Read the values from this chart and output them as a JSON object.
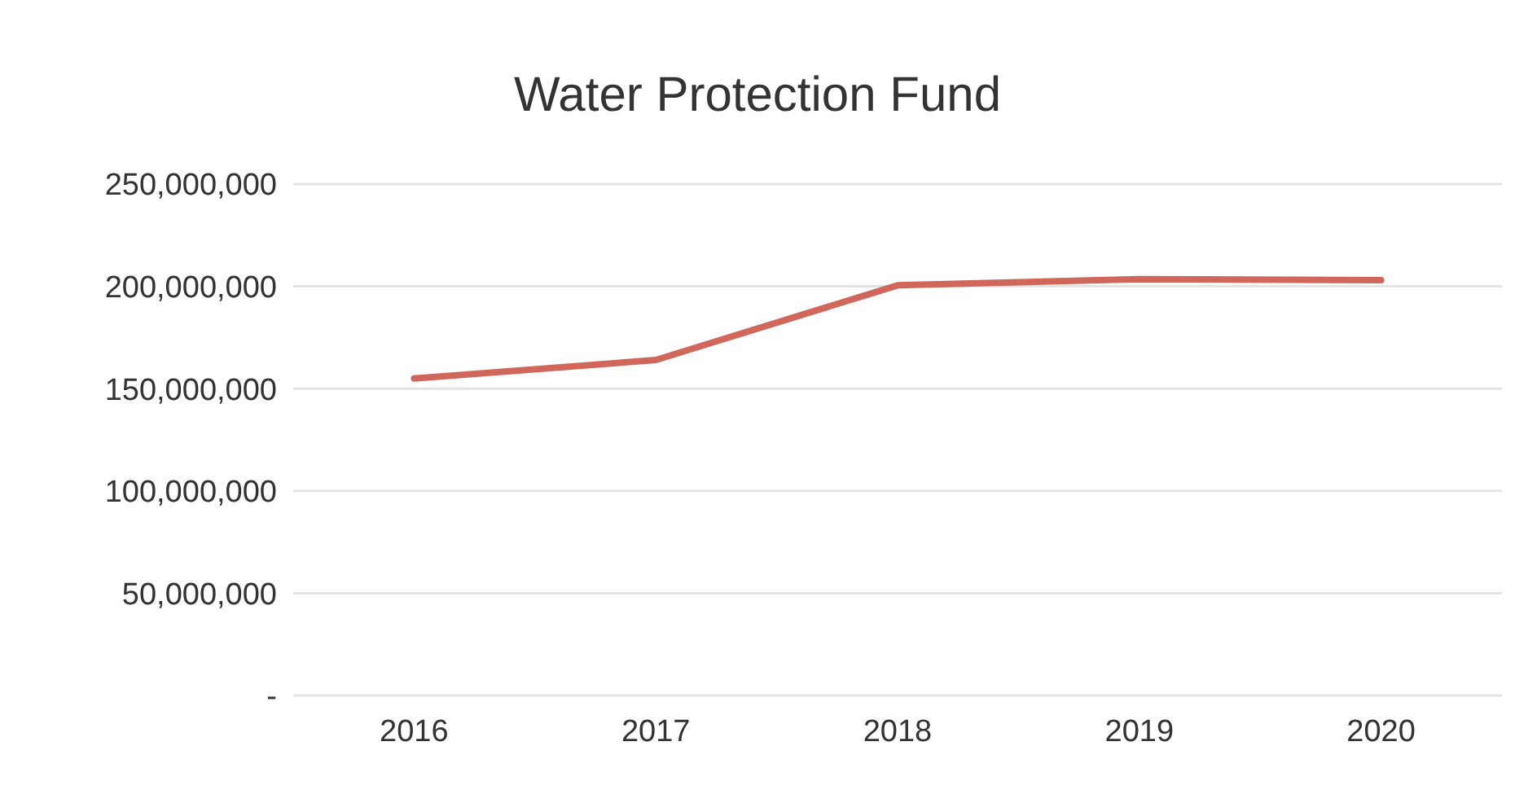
{
  "chart_data": {
    "type": "line",
    "title": "Water Protection  Fund",
    "categories": [
      "2016",
      "2017",
      "2018",
      "2019",
      "2020"
    ],
    "series": [
      {
        "color": "#d0675a",
        "values": [
          155000000,
          164000000,
          200500000,
          203500000,
          203000000
        ]
      }
    ],
    "ylim": [
      0,
      250000000
    ],
    "yticks": [
      {
        "value": 0,
        "label": "-"
      },
      {
        "value": 50000000,
        "label": "50,000,000"
      },
      {
        "value": 100000000,
        "label": "100,000,000"
      },
      {
        "value": 150000000,
        "label": "150,000,000"
      },
      {
        "value": 200000000,
        "label": "200,000,000"
      },
      {
        "value": 250000000,
        "label": "250,000,000"
      }
    ],
    "grid": "y",
    "marker": "none",
    "line_style": "solid"
  }
}
